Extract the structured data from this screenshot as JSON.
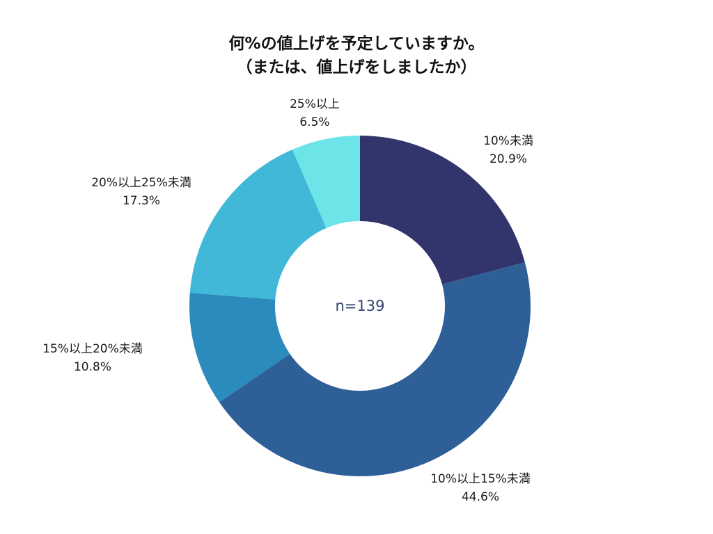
{
  "chart_data": {
    "type": "pie",
    "style": "donut",
    "title_lines": [
      "何%の値上げを予定していますか。",
      "（または、値上げをしましたか）"
    ],
    "center_label": "n=139",
    "slices": [
      {
        "label": "10%未満",
        "value": 20.9,
        "value_label": "20.9%",
        "color": "#32356b"
      },
      {
        "label": "10%以上15%未満",
        "value": 44.6,
        "value_label": "44.6%",
        "color": "#2e5f97"
      },
      {
        "label": "15%以上20%未満",
        "value": 10.8,
        "value_label": "10.8%",
        "color": "#2b8bbd"
      },
      {
        "label": "20%以上25%未満",
        "value": 17.3,
        "value_label": "17.3%",
        "color": "#41b8d8"
      },
      {
        "label": "25%以上",
        "value": 6.5,
        "value_label": "6.5%",
        "color": "#6ce4e8"
      }
    ],
    "start_angle": "12 o'clock",
    "direction": "clockwise"
  }
}
